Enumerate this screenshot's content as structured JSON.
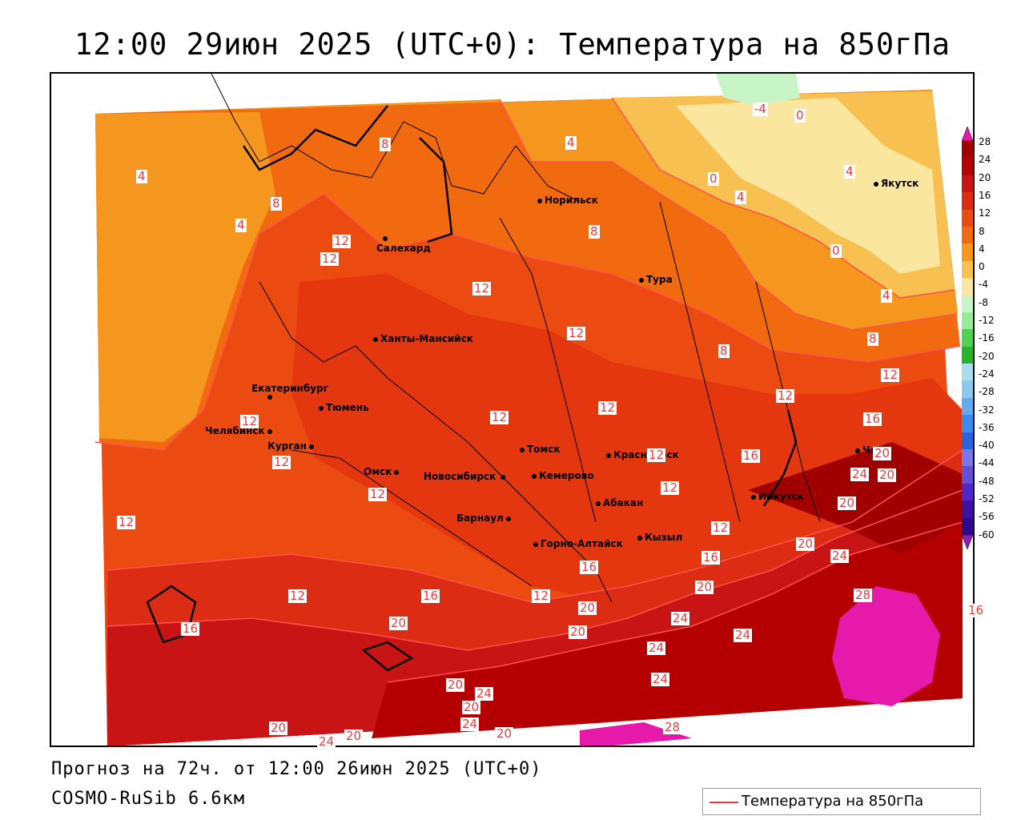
{
  "title": "12:00 29июн 2025 (UTC+0): Температура на 850гПа",
  "footer": {
    "forecast": "Прогноз на 72ч. от 12:00 26июн 2025 (UTC+0)",
    "model": "COSMO-RuSib 6.6км"
  },
  "legend": {
    "label": "Температура на 850гПа",
    "color": "#e83a3a"
  },
  "colorbar": {
    "ticks": [
      "28",
      "24",
      "20",
      "16",
      "12",
      "8",
      "4",
      "0",
      "-4",
      "-8",
      "-12",
      "-16",
      "-20",
      "-24",
      "-28",
      "-32",
      "-36",
      "-40",
      "-44",
      "-48",
      "-52",
      "-56",
      "-60"
    ],
    "colors": [
      "#a00000",
      "#b40000",
      "#c81414",
      "#dc2d14",
      "#eb4a10",
      "#f26a10",
      "#f5961e",
      "#f8c050",
      "#fbe6a0",
      "#c8f5c8",
      "#96eb96",
      "#50d250",
      "#28b428",
      "#aadcf0",
      "#8cc8f0",
      "#64aaf0",
      "#3c8cf0",
      "#2864dc",
      "#7878e6",
      "#6450d2",
      "#5028c8",
      "#3c14a0",
      "#2d0a8c"
    ],
    "top_color": "#e619aa",
    "bottom_color": "#8c1eb4"
  },
  "cities": [
    {
      "name": "Норильск"
    },
    {
      "name": "Якутск"
    },
    {
      "name": "Салехард"
    },
    {
      "name": "Тура"
    },
    {
      "name": "Ханты-Мансийск"
    },
    {
      "name": "Екатеринбург"
    },
    {
      "name": "Тюмень"
    },
    {
      "name": "Челябинск"
    },
    {
      "name": "Курган"
    },
    {
      "name": "Омск"
    },
    {
      "name": "Новосибирск"
    },
    {
      "name": "Томск"
    },
    {
      "name": "Кемерово"
    },
    {
      "name": "Красноярск"
    },
    {
      "name": "Абакан"
    },
    {
      "name": "Барнаул"
    },
    {
      "name": "Горно-Алтайск"
    },
    {
      "name": "Кызыл"
    },
    {
      "name": "Иркутск"
    },
    {
      "name": "Чита"
    }
  ],
  "contour_labels": [
    "4",
    "8",
    "4",
    "0",
    "-4",
    "0",
    "4",
    "0",
    "4",
    "4",
    "4",
    "8",
    "12",
    "12",
    "12",
    "8",
    "12",
    "8",
    "8",
    "12",
    "12",
    "12",
    "12",
    "12",
    "12",
    "16",
    "12",
    "16",
    "20",
    "12",
    "12",
    "12",
    "12",
    "12",
    "16",
    "16",
    "20",
    "20",
    "24",
    "12",
    "16",
    "16",
    "20",
    "20",
    "20",
    "24",
    "28",
    "16",
    "20",
    "24",
    "24",
    "24",
    "20",
    "24",
    "20",
    "24",
    "20",
    "20",
    "24",
    "28",
    "20",
    "24",
    "20"
  ]
}
